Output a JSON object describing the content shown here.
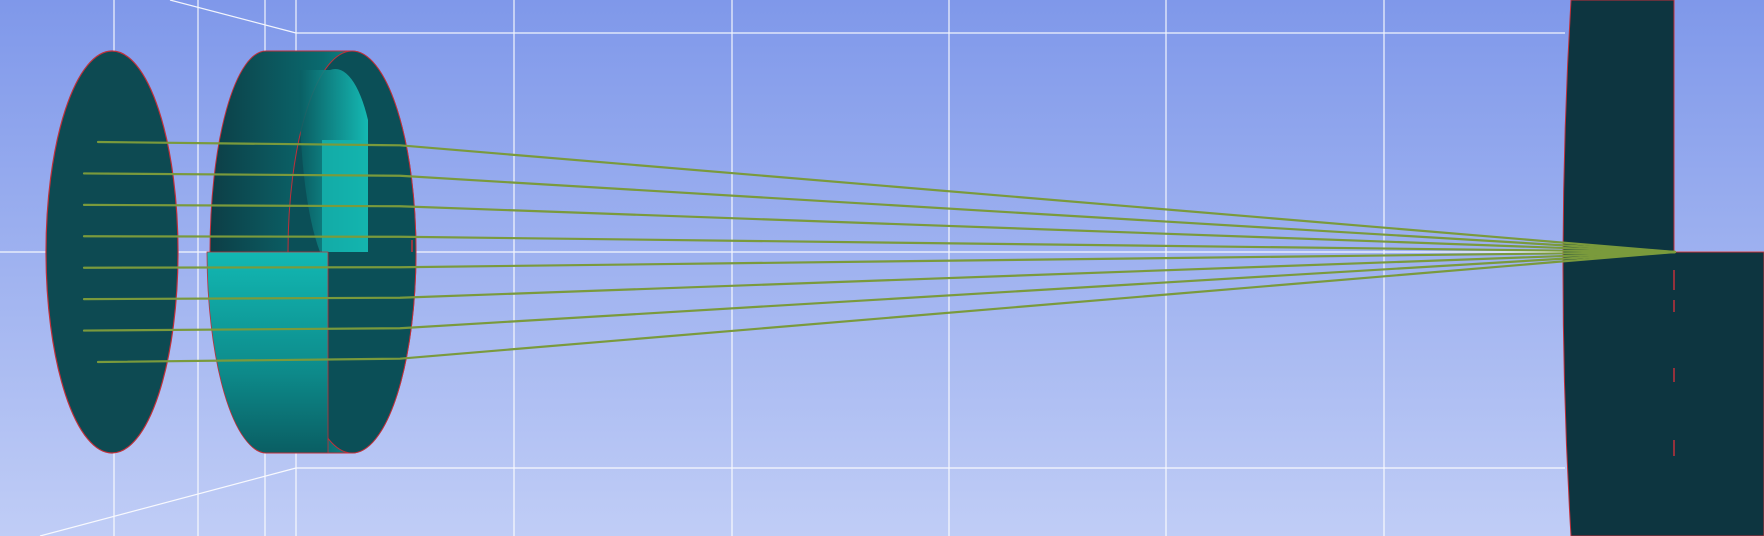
{
  "scene": {
    "background_top": "#7f98ea",
    "background_bottom": "#c0cdf6",
    "grid_color": "#ffffff",
    "element_dark": "#0d3e46",
    "element_mid": "#0a6a6f",
    "element_light": "#12b8b3",
    "edge_color": "#c0303a",
    "ray_color": "#7a9a3c",
    "ray_count": 8
  }
}
